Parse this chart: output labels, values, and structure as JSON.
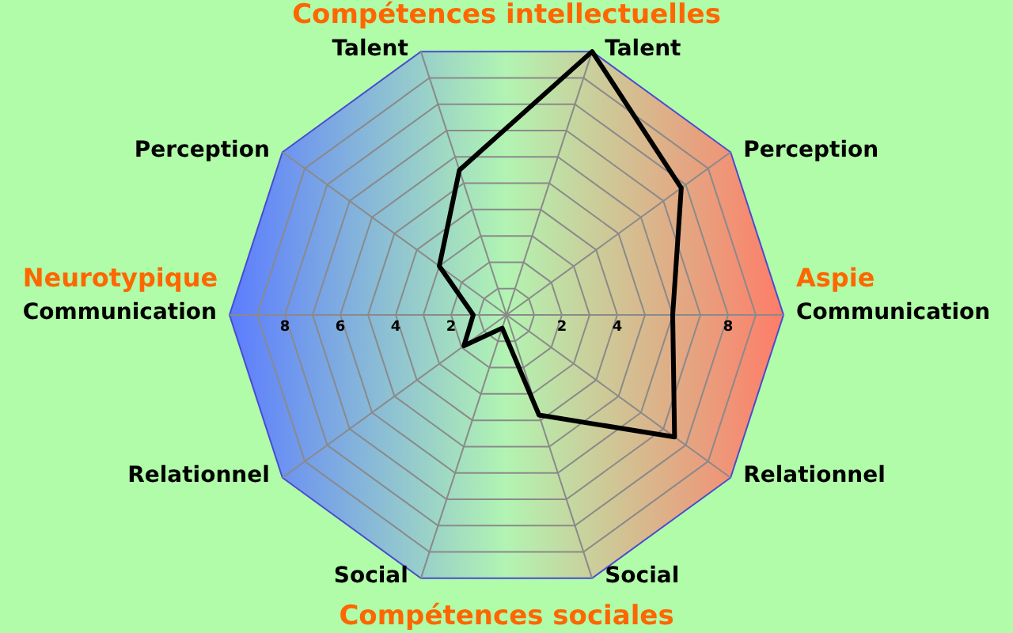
{
  "chart_data": {
    "type": "radar",
    "title": "Compétences intellectuelles",
    "categories": [
      "Talent",
      "Perception",
      "Communication",
      "Relationnel",
      "Social",
      "Social",
      "Relationnel",
      "Communication",
      "Perception",
      "Talent"
    ],
    "series": [
      {
        "color": "#000000",
        "values": [
          10,
          7.8,
          6,
          7.5,
          3.8,
          0.5,
          1.9,
          1.2,
          3,
          5.5
        ]
      }
    ],
    "ylim": [
      0,
      10
    ],
    "yticks": [
      8,
      6,
      4,
      2,
      2,
      4,
      8
    ],
    "grid": true,
    "legend": false,
    "marker": "none",
    "line_style": "solid",
    "annotations": [
      "Compétences sociales",
      "Neurotypique",
      "Aspie"
    ]
  }
}
